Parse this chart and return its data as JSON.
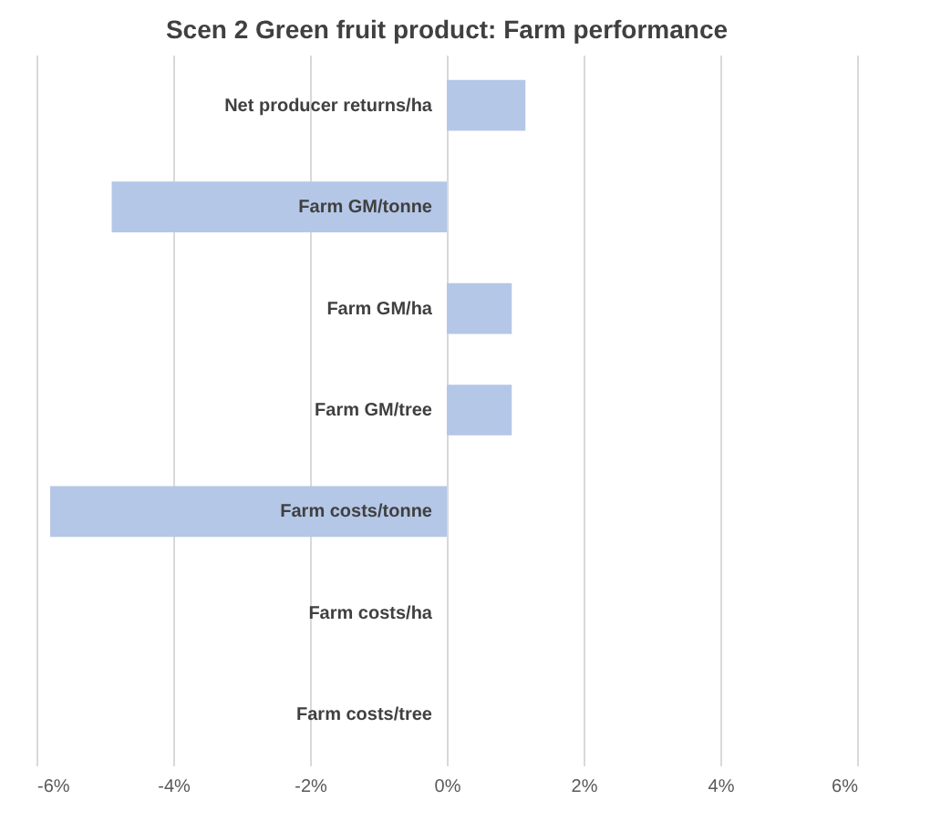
{
  "chart_data": {
    "type": "bar",
    "orientation": "horizontal",
    "title": "Scen 2 Green fruit product: Farm performance",
    "categories": [
      "Net producer returns/ha",
      "Farm GM/tonne",
      "Farm GM/ha",
      "Farm GM/tree",
      "Farm costs/tonne",
      "Farm costs/ha",
      "Farm costs/tree"
    ],
    "values": [
      1.15,
      -4.9,
      0.95,
      0.95,
      -5.8,
      0,
      0
    ],
    "color": "#b4c7e7",
    "xlim": [
      -6,
      6
    ],
    "xticks": [
      {
        "value": -6,
        "label": "-6%"
      },
      {
        "value": -4,
        "label": "-4%"
      },
      {
        "value": -2,
        "label": "-2%"
      },
      {
        "value": 0,
        "label": "0%"
      },
      {
        "value": 2,
        "label": "2%"
      },
      {
        "value": 4,
        "label": "4%"
      },
      {
        "value": 6,
        "label": "6%"
      }
    ],
    "grid": "x"
  }
}
